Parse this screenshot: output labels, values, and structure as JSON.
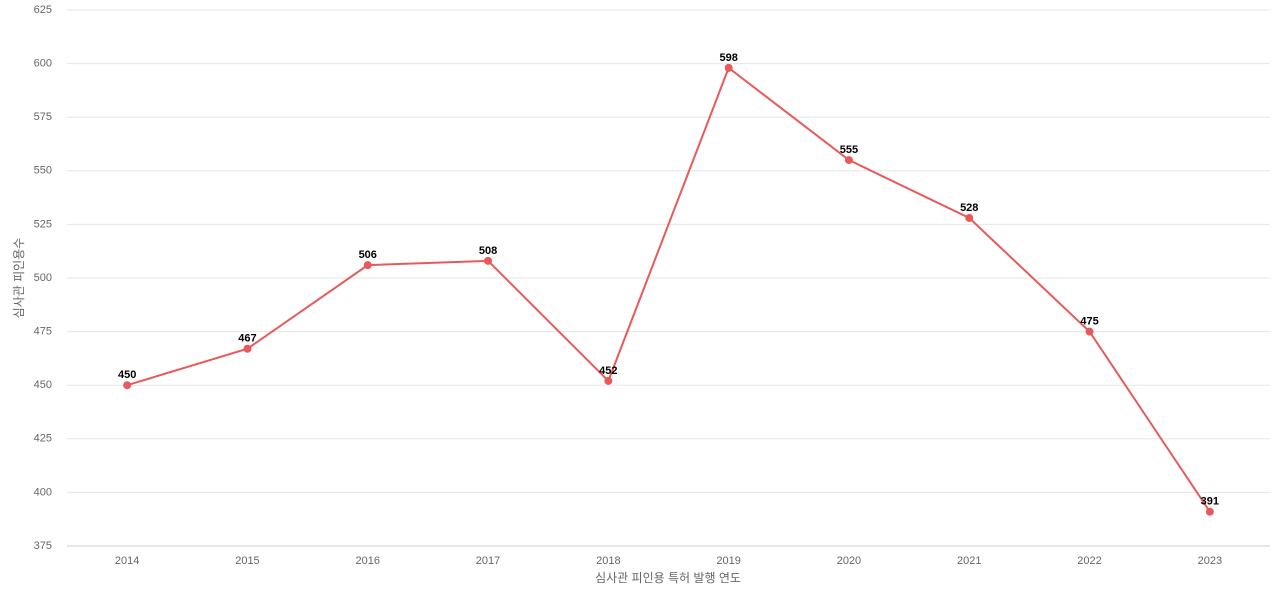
{
  "chart_data": {
    "type": "line",
    "x_label": "심사관 피인용 특허 발행 연도",
    "y_label": "심사관 피인용수",
    "categories": [
      "2014",
      "2015",
      "2016",
      "2017",
      "2018",
      "2019",
      "2020",
      "2021",
      "2022",
      "2023"
    ],
    "values": [
      450,
      467,
      506,
      508,
      452,
      598,
      555,
      528,
      475,
      391
    ],
    "color": "#e85a5a",
    "ylim": [
      375,
      625
    ],
    "yticks": [
      375,
      400,
      425,
      450,
      475,
      500,
      525,
      550,
      575,
      600,
      625
    ],
    "grid": true
  }
}
